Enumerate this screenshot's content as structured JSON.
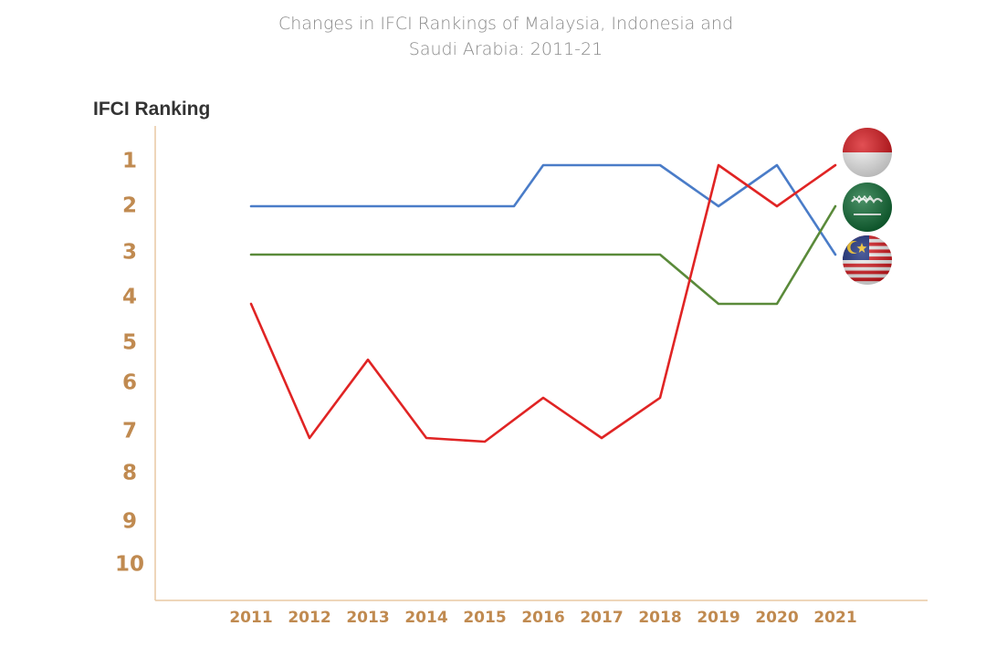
{
  "chart_data": {
    "type": "line",
    "title": [
      "Changes in IFCI Rankings of Malaysia, Indonesia and",
      "Saudi Arabia: 2011-21"
    ],
    "ylabel": "IFCI Ranking",
    "xlabel": "",
    "categories": [
      "2011",
      "2012",
      "2013",
      "2014",
      "2015",
      "2016",
      "2017",
      "2018",
      "2019",
      "2020",
      "2021"
    ],
    "y_ticks": [
      "1",
      "2",
      "3",
      "4",
      "5",
      "6",
      "7",
      "8",
      "9",
      "10"
    ],
    "ylim": [
      1,
      10
    ],
    "y_inverted": true,
    "series": [
      {
        "country": "Indonesia",
        "color": "#4a7cc8",
        "values": [
          2,
          2,
          2,
          2,
          2,
          1,
          1,
          1,
          2,
          1,
          3
        ],
        "points": [
          [
            2011,
            2
          ],
          [
            2015.5,
            2
          ],
          [
            2016,
            1
          ],
          [
            2018,
            1
          ],
          [
            2019,
            2
          ],
          [
            2020,
            1
          ],
          [
            2021,
            3
          ]
        ]
      },
      {
        "country": "Saudi Arabia",
        "color": "#5a8a3a",
        "values": [
          3,
          3,
          3,
          3,
          3,
          3,
          3,
          3,
          4,
          4,
          2
        ],
        "points": [
          [
            2011,
            3
          ],
          [
            2018,
            3
          ],
          [
            2019,
            4
          ],
          [
            2020,
            4
          ],
          [
            2021,
            2
          ]
        ]
      },
      {
        "country": "Malaysia",
        "color": "#e02424",
        "values": [
          4,
          7,
          5.2,
          7,
          7.1,
          6.1,
          7,
          6.1,
          1,
          2,
          1
        ],
        "points": [
          [
            2011,
            4
          ],
          [
            2012,
            7
          ],
          [
            2013,
            5.2
          ],
          [
            2014,
            7
          ],
          [
            2015,
            7.1
          ],
          [
            2016,
            6.1
          ],
          [
            2017,
            7
          ],
          [
            2018,
            6.1
          ],
          [
            2019,
            1
          ],
          [
            2020,
            2
          ],
          [
            2021,
            1
          ]
        ]
      }
    ],
    "flags": [
      {
        "country": "Indonesia",
        "icon": "indonesia-flag-icon"
      },
      {
        "country": "Saudi Arabia",
        "icon": "saudi-arabia-flag-icon"
      },
      {
        "country": "Malaysia",
        "icon": "malaysia-flag-icon"
      }
    ],
    "axis_color": "#e8c9a4",
    "tick_color": "#c08a50",
    "grid": false,
    "legend": "flags at line ends (right)"
  }
}
